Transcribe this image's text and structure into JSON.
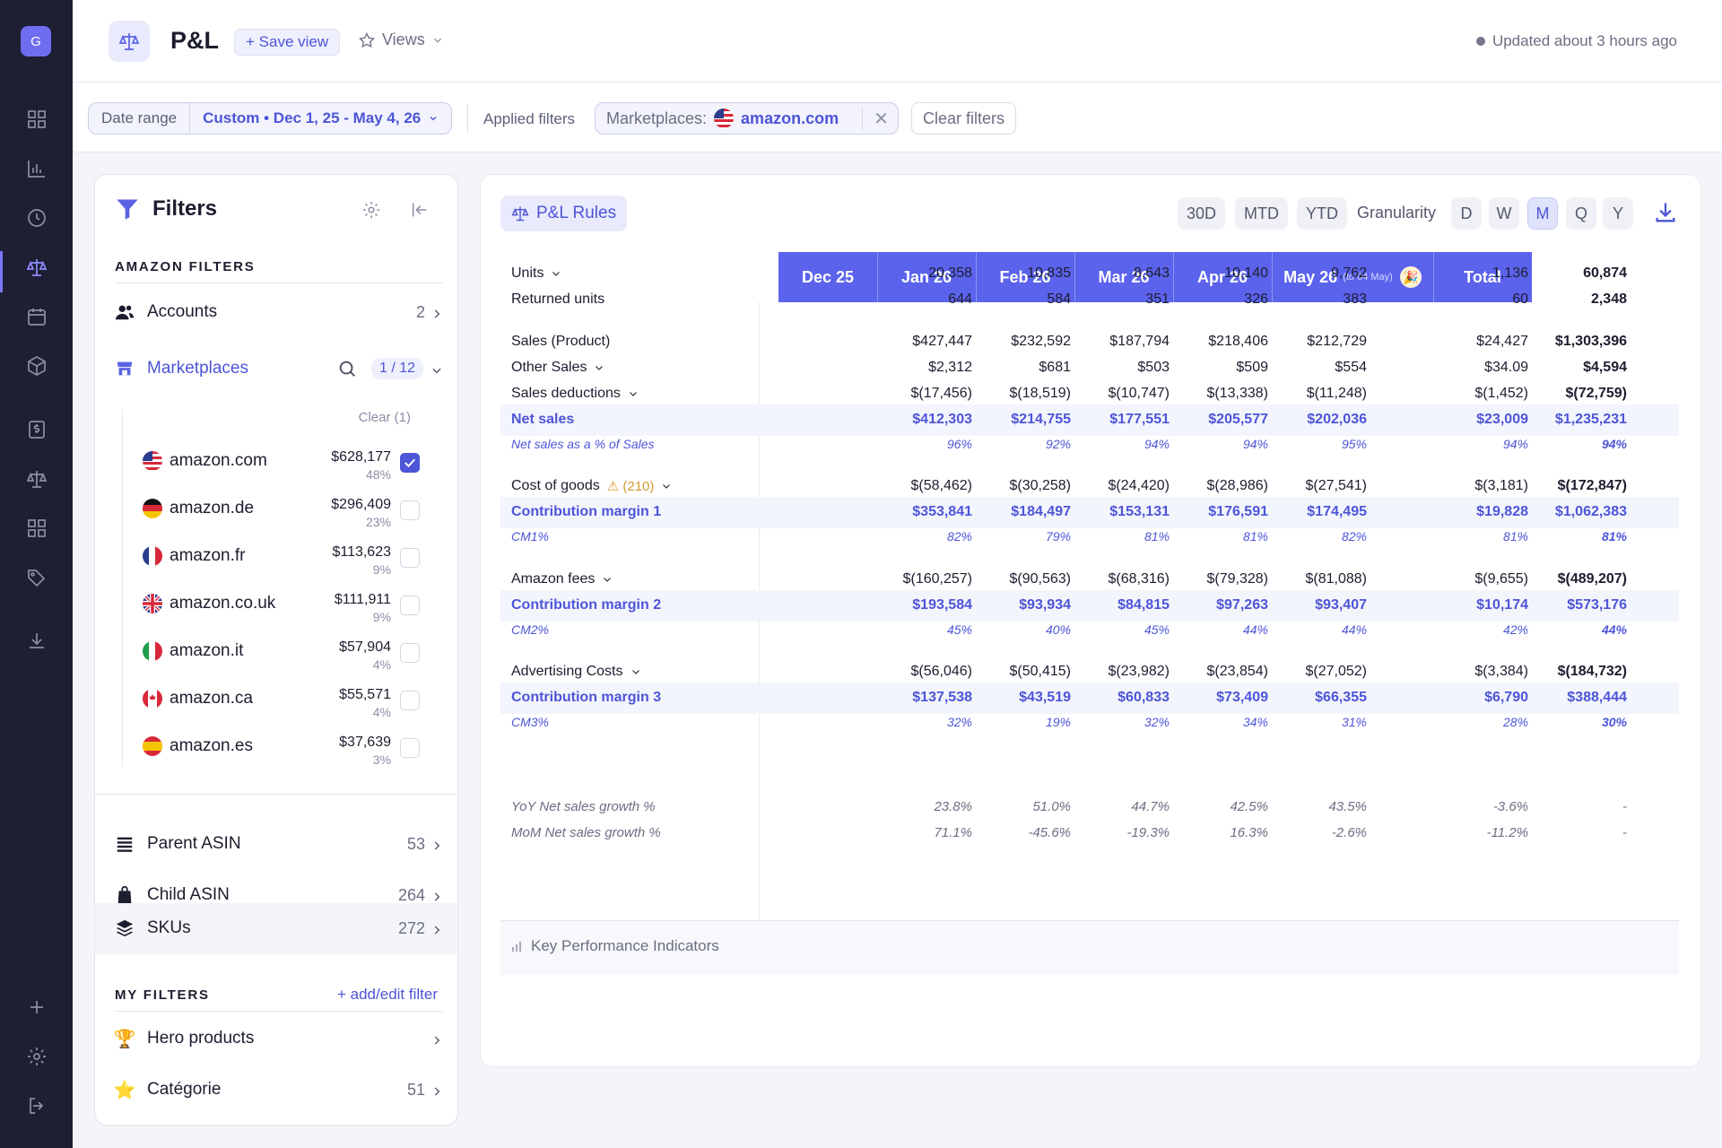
{
  "app": {
    "logo_letter": "G"
  },
  "header": {
    "title": "P&L",
    "save_view": "+ Save view",
    "views": "Views",
    "updated": "Updated about 3 hours ago"
  },
  "filter_bar": {
    "date_range_label": "Date range",
    "date_range_value": "Custom • Dec 1, 25 - May 4, 26",
    "applied_filters": "Applied filters",
    "chip_label": "Marketplaces:",
    "chip_value": "amazon.com",
    "clear_filters": "Clear filters"
  },
  "filters": {
    "title": "Filters",
    "amazon_section": "AMAZON FILTERS",
    "accounts": {
      "label": "Accounts",
      "count": "2"
    },
    "marketplaces": {
      "label": "Marketplaces",
      "count": "1 / 12",
      "clear": "Clear (1)"
    },
    "marketplace_list": [
      {
        "name": "amazon.com",
        "value": "$628,177",
        "pct": "48%",
        "checked": true,
        "flag": "us"
      },
      {
        "name": "amazon.de",
        "value": "$296,409",
        "pct": "23%",
        "checked": false,
        "flag": "de"
      },
      {
        "name": "amazon.fr",
        "value": "$113,623",
        "pct": "9%",
        "checked": false,
        "flag": "fr"
      },
      {
        "name": "amazon.co.uk",
        "value": "$111,911",
        "pct": "9%",
        "checked": false,
        "flag": "uk"
      },
      {
        "name": "amazon.it",
        "value": "$57,904",
        "pct": "4%",
        "checked": false,
        "flag": "it"
      },
      {
        "name": "amazon.ca",
        "value": "$55,571",
        "pct": "4%",
        "checked": false,
        "flag": "ca"
      },
      {
        "name": "amazon.es",
        "value": "$37,639",
        "pct": "3%",
        "checked": false,
        "flag": "es"
      }
    ],
    "parent_asin": {
      "label": "Parent ASIN",
      "count": "53"
    },
    "child_asin": {
      "label": "Child ASIN",
      "count": "264"
    },
    "skus": {
      "label": "SKUs",
      "count": "272"
    },
    "my_filters_section": "MY FILTERS",
    "add_edit": "+ add/edit filter",
    "hero": {
      "label": "Hero products",
      "count": ""
    },
    "categorie": {
      "label": "Catégorie",
      "count": "51"
    }
  },
  "main": {
    "rules": "P&L Rules",
    "periods": [
      "30D",
      "MTD",
      "YTD"
    ],
    "granularity_label": "Granularity",
    "granularity": [
      "D",
      "W",
      "M",
      "Q",
      "Y"
    ],
    "granularity_active": "M",
    "columns": [
      "Dec 25",
      "Jan 26",
      "Feb 26",
      "Mar 26",
      "Apr 26",
      "May 26",
      "Total"
    ],
    "may_sub": "(to 04 May)",
    "rows": [
      {
        "label": "Units",
        "dropdown": true,
        "style": "plain",
        "values": [
          "20,358",
          "10,835",
          "8,643",
          "10,140",
          "9,762",
          "1,136",
          "60,874"
        ]
      },
      {
        "label": "Returned units",
        "style": "plain",
        "values": [
          "644",
          "584",
          "351",
          "326",
          "383",
          "60",
          "2,348"
        ]
      },
      {
        "label": "Sales (Product)",
        "style": "plain",
        "values": [
          "$427,447",
          "$232,592",
          "$187,794",
          "$218,406",
          "$212,729",
          "$24,427",
          "$1,303,396"
        ]
      },
      {
        "label": "Other Sales",
        "dropdown": true,
        "style": "plain",
        "values": [
          "$2,312",
          "$681",
          "$503",
          "$509",
          "$554",
          "$34.09",
          "$4,594"
        ]
      },
      {
        "label": "Sales deductions",
        "dropdown": true,
        "style": "plain",
        "values": [
          "$(17,456)",
          "$(18,519)",
          "$(10,747)",
          "$(13,338)",
          "$(11,248)",
          "$(1,452)",
          "$(72,759)"
        ]
      },
      {
        "label": "Net sales",
        "style": "blue",
        "values": [
          "$412,303",
          "$214,755",
          "$177,551",
          "$205,577",
          "$202,036",
          "$23,009",
          "$1,235,231"
        ]
      },
      {
        "label": "Net sales as a % of Sales",
        "style": "pct",
        "values": [
          "96%",
          "92%",
          "94%",
          "94%",
          "95%",
          "94%",
          "94%"
        ]
      },
      {
        "label": "Cost of goods",
        "warning": "(210)",
        "dropdown": true,
        "style": "plain",
        "values": [
          "$(58,462)",
          "$(30,258)",
          "$(24,420)",
          "$(28,986)",
          "$(27,541)",
          "$(3,181)",
          "$(172,847)"
        ]
      },
      {
        "label": "Contribution margin 1",
        "style": "blue",
        "values": [
          "$353,841",
          "$184,497",
          "$153,131",
          "$176,591",
          "$174,495",
          "$19,828",
          "$1,062,383"
        ]
      },
      {
        "label": "CM1%",
        "style": "pct",
        "values": [
          "82%",
          "79%",
          "81%",
          "81%",
          "82%",
          "81%",
          "81%"
        ]
      },
      {
        "label": "Amazon fees",
        "dropdown": true,
        "style": "plain",
        "values": [
          "$(160,257)",
          "$(90,563)",
          "$(68,316)",
          "$(79,328)",
          "$(81,088)",
          "$(9,655)",
          "$(489,207)"
        ]
      },
      {
        "label": "Contribution margin 2",
        "style": "blue",
        "values": [
          "$193,584",
          "$93,934",
          "$84,815",
          "$97,263",
          "$93,407",
          "$10,174",
          "$573,176"
        ]
      },
      {
        "label": "CM2%",
        "style": "pct",
        "values": [
          "45%",
          "40%",
          "45%",
          "44%",
          "44%",
          "42%",
          "44%"
        ]
      },
      {
        "label": "Advertising Costs",
        "dropdown": true,
        "style": "plain",
        "values": [
          "$(56,046)",
          "$(50,415)",
          "$(23,982)",
          "$(23,854)",
          "$(27,052)",
          "$(3,384)",
          "$(184,732)"
        ]
      },
      {
        "label": "Contribution margin 3",
        "style": "blue",
        "values": [
          "$137,538",
          "$43,519",
          "$60,833",
          "$73,409",
          "$66,355",
          "$6,790",
          "$388,444"
        ]
      },
      {
        "label": "CM3%",
        "style": "pct",
        "values": [
          "32%",
          "19%",
          "32%",
          "34%",
          "31%",
          "28%",
          "30%"
        ]
      }
    ],
    "kpi_title": "Key Performance Indicators",
    "kpi_rows": [
      {
        "label": "YoY Net sales growth %",
        "values": [
          "23.8%",
          "51.0%",
          "44.7%",
          "42.5%",
          "43.5%",
          "-3.6%",
          "-"
        ]
      },
      {
        "label": "MoM Net sales growth %",
        "values": [
          "71.1%",
          "-45.6%",
          "-19.3%",
          "16.3%",
          "-2.6%",
          "-11.2%",
          "-"
        ]
      }
    ]
  }
}
